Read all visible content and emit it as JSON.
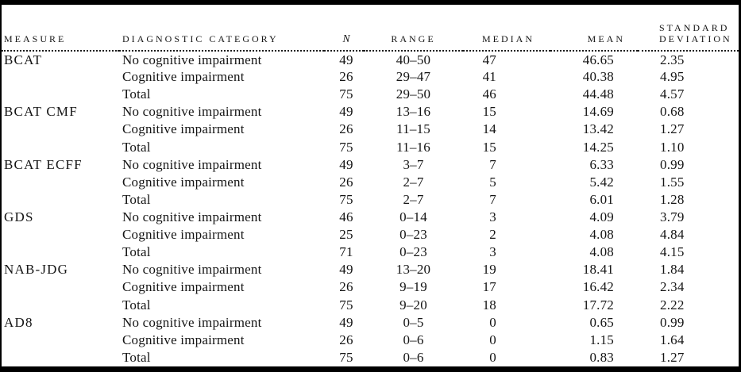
{
  "colors": {
    "frame_border": "#000000",
    "text": "#151515",
    "background": "#ffffff"
  },
  "table": {
    "headers": {
      "measure": "Measure",
      "diagnostic_category": "Diagnostic Category",
      "n": "N",
      "range": "Range",
      "median": "Median",
      "mean": "Mean",
      "sd_line1": "Standard",
      "sd_line2": "Deviation"
    },
    "groups": [
      {
        "measure": "BCAT",
        "rows": [
          {
            "category": "No cognitive impairment",
            "n": "49",
            "range": "40–50",
            "median": "47",
            "mean": "46.65",
            "sd": "2.35"
          },
          {
            "category": "Cognitive impairment",
            "n": "26",
            "range": "29–47",
            "median": "41",
            "mean": "40.38",
            "sd": "4.95"
          },
          {
            "category": "Total",
            "n": "75",
            "range": "29–50",
            "median": "46",
            "mean": "44.48",
            "sd": "4.57"
          }
        ]
      },
      {
        "measure": "BCAT CMF",
        "rows": [
          {
            "category": "No cognitive impairment",
            "n": "49",
            "range": "13–16",
            "median": "15",
            "mean": "14.69",
            "sd": "0.68"
          },
          {
            "category": "Cognitive impairment",
            "n": "26",
            "range": "11–15",
            "median": "14",
            "mean": "13.42",
            "sd": "1.27"
          },
          {
            "category": "Total",
            "n": "75",
            "range": "11–16",
            "median": "15",
            "mean": "14.25",
            "sd": "1.10"
          }
        ]
      },
      {
        "measure": "BCAT ECFF",
        "rows": [
          {
            "category": "No cognitive impairment",
            "n": "49",
            "range": "3–7",
            "median": "7",
            "mean": "6.33",
            "sd": "0.99"
          },
          {
            "category": "Cognitive impairment",
            "n": "26",
            "range": "2–7",
            "median": "5",
            "mean": "5.42",
            "sd": "1.55"
          },
          {
            "category": "Total",
            "n": "75",
            "range": "2–7",
            "median": "7",
            "mean": "6.01",
            "sd": "1.28"
          }
        ]
      },
      {
        "measure": "GDS",
        "rows": [
          {
            "category": "No cognitive impairment",
            "n": "46",
            "range": "0–14",
            "median": "3",
            "mean": "4.09",
            "sd": "3.79"
          },
          {
            "category": "Cognitive impairment",
            "n": "25",
            "range": "0–23",
            "median": "2",
            "mean": "4.08",
            "sd": "4.84"
          },
          {
            "category": "Total",
            "n": "71",
            "range": "0–23",
            "median": "3",
            "mean": "4.08",
            "sd": "4.15"
          }
        ]
      },
      {
        "measure": "NAB-JDG",
        "rows": [
          {
            "category": "No cognitive impairment",
            "n": "49",
            "range": "13–20",
            "median": "19",
            "mean": "18.41",
            "sd": "1.84"
          },
          {
            "category": "Cognitive impairment",
            "n": "26",
            "range": "9–19",
            "median": "17",
            "mean": "16.42",
            "sd": "2.34"
          },
          {
            "category": "Total",
            "n": "75",
            "range": "9–20",
            "median": "18",
            "mean": "17.72",
            "sd": "2.22"
          }
        ]
      },
      {
        "measure": "AD8",
        "rows": [
          {
            "category": "No cognitive impairment",
            "n": "49",
            "range": "0–5",
            "median": "0",
            "mean": "0.65",
            "sd": "0.99"
          },
          {
            "category": "Cognitive impairment",
            "n": "26",
            "range": "0–6",
            "median": "0",
            "mean": "1.15",
            "sd": "1.64"
          },
          {
            "category": "Total",
            "n": "75",
            "range": "0–6",
            "median": "0",
            "mean": "0.83",
            "sd": "1.27"
          }
        ]
      }
    ]
  }
}
